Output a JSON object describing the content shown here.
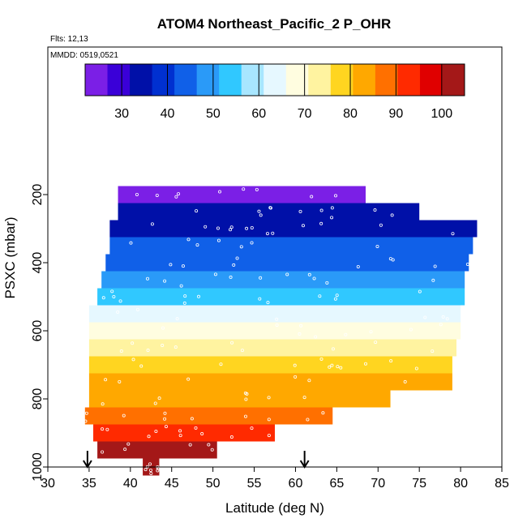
{
  "chart_data": {
    "type": "heatmap",
    "title": "ATOM4 Northeast_Pacific_2 P_OHR",
    "subtitle_flights": "Flts: 12,13",
    "subtitle_dates": "MMDD: 0519,0521",
    "xlabel": "Latitude (deg N)",
    "ylabel": "PSXC (mbar)",
    "xlim": [
      30,
      85
    ],
    "ylim": [
      1000,
      0
    ],
    "x_ticks": [
      "30",
      "35",
      "40",
      "45",
      "50",
      "55",
      "60",
      "65",
      "70",
      "75",
      "80",
      "85"
    ],
    "x_tick_values": [
      30,
      35,
      40,
      45,
      50,
      55,
      60,
      65,
      70,
      75,
      80,
      85
    ],
    "y_ticks": [
      "200",
      "400",
      "600",
      "800",
      "1000"
    ],
    "y_tick_values": [
      200,
      400,
      600,
      800,
      1000
    ],
    "colorbar": {
      "min": 22,
      "max": 105,
      "tick_values": [
        30,
        40,
        50,
        60,
        70,
        80,
        90,
        100
      ],
      "tick_labels": [
        "30",
        "40",
        "50",
        "60",
        "70",
        "80",
        "90",
        "100"
      ],
      "colors": [
        "#7b1fe6",
        "#3a00d8",
        "#0010a8",
        "#0030d0",
        "#1060e8",
        "#2a9af8",
        "#30c8ff",
        "#a8e6ff",
        "#e6f8ff",
        "#fffde0",
        "#fff3a0",
        "#ffd520",
        "#ffa800",
        "#ff7000",
        "#ff2a00",
        "#e00000",
        "#a41818"
      ]
    },
    "bands": [
      {
        "p": 200,
        "lat_start": 38.5,
        "lat_end": 68.5,
        "value": 25
      },
      {
        "p": 250,
        "lat_start": 38.5,
        "lat_end": 75.0,
        "value": 33
      },
      {
        "p": 300,
        "lat_start": 37.5,
        "lat_end": 82.0,
        "value": 36
      },
      {
        "p": 350,
        "lat_start": 37.5,
        "lat_end": 81.5,
        "value": 42
      },
      {
        "p": 400,
        "lat_start": 37.0,
        "lat_end": 81.0,
        "value": 45
      },
      {
        "p": 450,
        "lat_start": 36.5,
        "lat_end": 80.5,
        "value": 49
      },
      {
        "p": 500,
        "lat_start": 36.0,
        "lat_end": 80.5,
        "value": 53
      },
      {
        "p": 550,
        "lat_start": 35.0,
        "lat_end": 80.0,
        "value": 62
      },
      {
        "p": 600,
        "lat_start": 35.0,
        "lat_end": 80.0,
        "value": 66
      },
      {
        "p": 650,
        "lat_start": 35.0,
        "lat_end": 79.5,
        "value": 71
      },
      {
        "p": 700,
        "lat_start": 35.0,
        "lat_end": 79.0,
        "value": 77
      },
      {
        "p": 750,
        "lat_start": 35.0,
        "lat_end": 79.0,
        "value": 82
      },
      {
        "p": 800,
        "lat_start": 35.0,
        "lat_end": 71.5,
        "value": 85
      },
      {
        "p": 850,
        "lat_start": 34.5,
        "lat_end": 64.5,
        "value": 88
      },
      {
        "p": 900,
        "lat_start": 35.5,
        "lat_end": 57.5,
        "value": 95
      },
      {
        "p": 950,
        "lat_start": 36.0,
        "lat_end": 50.5,
        "value": 101
      },
      {
        "p": 1000,
        "lat_start": 41.5,
        "lat_end": 43.5,
        "value": 104
      }
    ],
    "markers": [
      {
        "type": "arrow",
        "lat": 34.8
      },
      {
        "type": "arrow",
        "lat": 61.1
      }
    ],
    "grid": false,
    "legend": "colorbar-top"
  }
}
